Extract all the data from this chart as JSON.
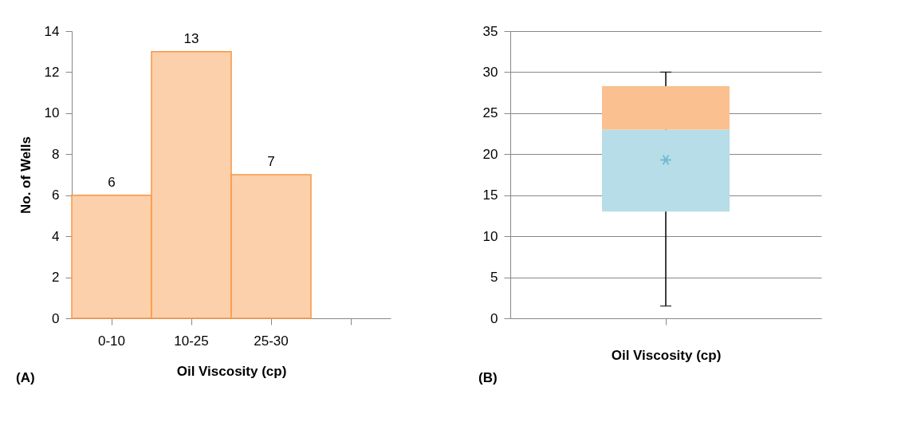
{
  "chart_data": [
    {
      "type": "bar",
      "ylabel": "No. of Wells",
      "xlabel": "Oil Viscosity (cp)",
      "categories": [
        "0-10",
        "10-25",
        "25-30",
        null
      ],
      "values": [
        6,
        13,
        7,
        null
      ],
      "color": "#fcd0aa",
      "data_labels": true,
      "ylim": [
        0,
        14
      ],
      "yticks": [
        0,
        2,
        4,
        6,
        8,
        10,
        12,
        14
      ],
      "grid": false,
      "annotations": [
        "(A)"
      ]
    },
    {
      "type": "box",
      "xlabel": "Oil Viscosity (cp)",
      "categories": [
        null
      ],
      "series": [
        {
          "color": "#b7dde8",
          "boxes": [
            {
              "low": 1.5,
              "q1": 13,
              "median": 23,
              "q3": 28.3,
              "high": 30,
              "mean": 19.3
            }
          ]
        }
      ],
      "color": "#fac090",
      "ylim": [
        0,
        35
      ],
      "yticks": [
        0,
        5,
        10,
        15,
        20,
        25,
        30,
        35
      ],
      "grid": "y",
      "tick_labels": "y",
      "annotations": [
        "(B)"
      ]
    }
  ]
}
